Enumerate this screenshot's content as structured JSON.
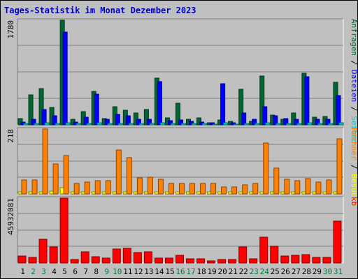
{
  "chart_data": {
    "type": "bar",
    "title": "Tages-Statistik im Monat Dezember 2023",
    "categories": [
      "1",
      "2",
      "3",
      "4",
      "5",
      "6",
      "7",
      "8",
      "9",
      "10",
      "11",
      "12",
      "13",
      "14",
      "15",
      "16",
      "17",
      "18",
      "19",
      "20",
      "21",
      "22",
      "23",
      "24",
      "25",
      "26",
      "27",
      "28",
      "29",
      "30",
      "31"
    ],
    "weekend_days": [
      "2",
      "3",
      "9",
      "10",
      "16",
      "17",
      "23",
      "24",
      "30",
      "31"
    ],
    "colors": {
      "anfragen": "#006633",
      "dateien": "#0000ff",
      "seiten": "#00cccc",
      "besuche": "#ffff00",
      "rechner": "#ff8000",
      "kb": "#ff0000",
      "weekday_label": "#000000",
      "weekend_label": "#008040",
      "title": "#0000cc"
    },
    "panels": [
      {
        "id": "top",
        "ymax_label": "1780",
        "ymax": 1780,
        "series": [
          {
            "name": "Anfragen",
            "key": "anfragen",
            "values": [
              110,
              510,
              620,
              300,
              1780,
              100,
              220,
              570,
              110,
              310,
              250,
              200,
              260,
              800,
              120,
              370,
              100,
              120,
              40,
              80,
              60,
              600,
              60,
              830,
              170,
              100,
              200,
              880,
              130,
              140,
              720
            ]
          },
          {
            "name": "Dateien",
            "key": "dateien",
            "values": [
              50,
              100,
              260,
              150,
              1580,
              50,
              130,
              520,
              90,
              180,
              160,
              100,
              90,
              740,
              70,
              80,
              60,
              50,
              30,
              700,
              40,
              200,
              100,
              310,
              150,
              110,
              100,
              820,
              100,
              90,
              500
            ]
          },
          {
            "name": "Seiten",
            "key": "seiten",
            "values": [
              25,
              25,
              30,
              25,
              40,
              20,
              25,
              30,
              20,
              25,
              25,
              20,
              25,
              35,
              20,
              25,
              20,
              20,
              10,
              30,
              15,
              25,
              20,
              30,
              25,
              20,
              25,
              35,
              20,
              20,
              30
            ]
          }
        ],
        "right_labels": [
          {
            "text": "Anfragen",
            "key": "anfragen"
          },
          {
            "text": " / ",
            "key": "weekday_label"
          },
          {
            "text": "Dateien",
            "key": "dateien"
          },
          {
            "text": " / ",
            "key": "weekday_label"
          },
          {
            "text": "Seiten",
            "key": "seiten"
          }
        ]
      },
      {
        "id": "middle",
        "ymax_label": "218",
        "ymax": 218,
        "series": [
          {
            "name": "Besuche",
            "key": "besuche",
            "values": [
              8,
              8,
              8,
              10,
              20,
              8,
              8,
              8,
              8,
              8,
              8,
              8,
              8,
              8,
              8,
              8,
              8,
              8,
              8,
              8,
              8,
              8,
              8,
              8,
              8,
              8,
              8,
              8,
              8,
              8,
              8
            ]
          },
          {
            "name": "Rechner",
            "key": "rechner",
            "values": [
              48,
              46,
              218,
              100,
              130,
              34,
              40,
              44,
              44,
              148,
              122,
              54,
              56,
              50,
              34,
              34,
              34,
              34,
              36,
              24,
              24,
              30,
              34,
              172,
              86,
              50,
              44,
              52,
              40,
              46,
              186
            ]
          }
        ],
        "right_labels": [
          {
            "text": "Rechner",
            "key": "rechner"
          },
          {
            "text": " / ",
            "key": "weekday_label"
          },
          {
            "text": "Besuche",
            "key": "besuche"
          }
        ]
      },
      {
        "id": "bottom",
        "ymax_label": "45932081",
        "ymax": 45932081,
        "series": [
          {
            "name": "kb",
            "key": "kb",
            "values": [
              4800000,
              3800000,
              17000000,
              11500000,
              45932081,
              2600000,
              7800000,
              4500000,
              3600000,
              9800000,
              10200000,
              7200000,
              8100000,
              3400000,
              3300000,
              5600000,
              2900000,
              3100000,
              1300000,
              2700000,
              2300000,
              11600000,
              3000000,
              18400000,
              12000000,
              4700000,
              5500000,
              5700000,
              4000000,
              3800000,
              29500000
            ]
          }
        ],
        "right_labels": [
          {
            "text": "kb",
            "key": "kb"
          }
        ]
      }
    ]
  }
}
